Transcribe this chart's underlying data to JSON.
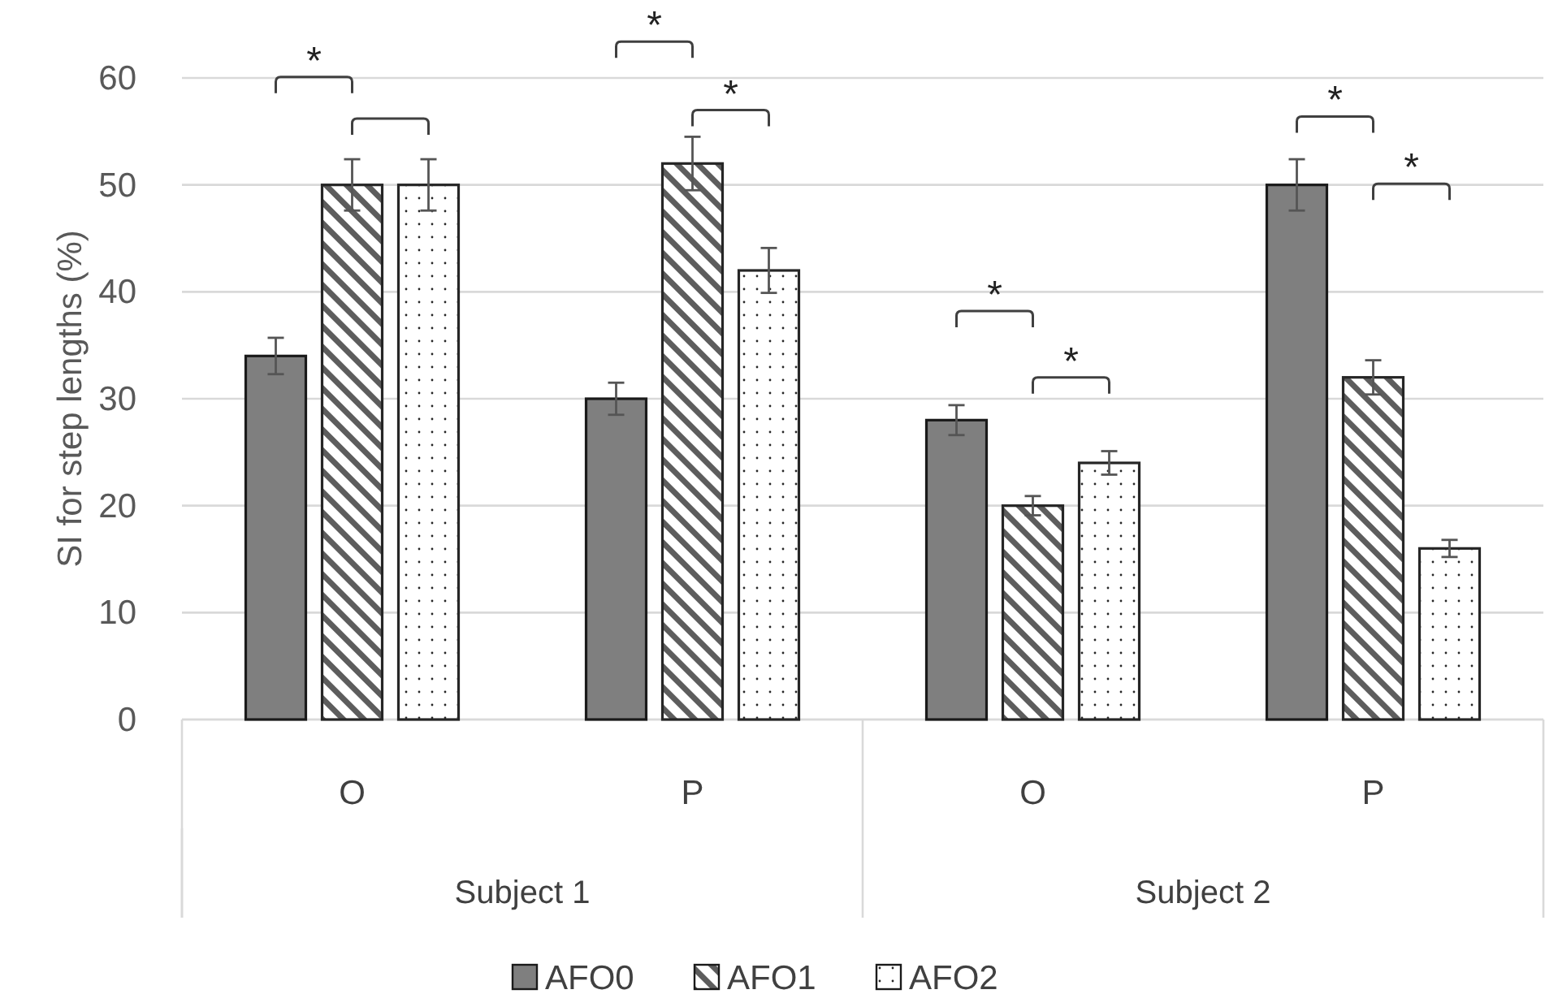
{
  "chart_data": {
    "type": "bar",
    "ylabel": "SI for step lengths (%)",
    "categories": [
      "O",
      "P",
      "O",
      "P"
    ],
    "series": [
      {
        "name": "AFO0",
        "color": "#7f7f7f",
        "values": [
          34,
          30,
          28,
          50
        ],
        "errors": [
          1.7,
          1.5,
          1.4,
          2.4
        ]
      },
      {
        "name": "AFO1",
        "color": "#262626",
        "values": [
          50,
          52,
          20,
          32
        ],
        "errors": [
          2.4,
          2.5,
          0.9,
          1.6
        ]
      },
      {
        "name": "AFO2",
        "color": "#262626",
        "values": [
          50,
          42,
          24,
          16
        ],
        "errors": [
          2.4,
          2.1,
          1.1,
          0.8
        ]
      }
    ],
    "ylim": [
      0,
      60
    ],
    "yticks": [
      0,
      10,
      20,
      30,
      40,
      50,
      60
    ],
    "grid": "y",
    "legend": "bottom",
    "annotations": [
      "*",
      "*",
      "*",
      "*",
      "*",
      "*",
      "*",
      "Subject 1",
      "Subject 2"
    ]
  }
}
